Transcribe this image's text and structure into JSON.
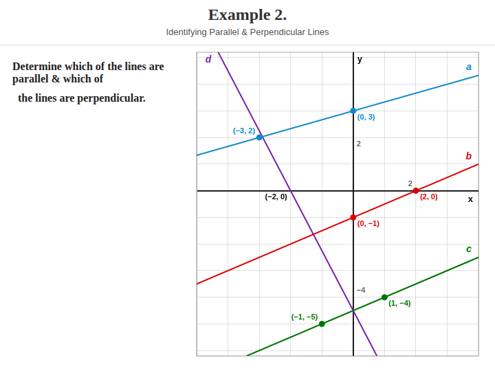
{
  "chart_data": {
    "type": "line",
    "title": "Example 2.",
    "subtitle": "Identifying Parallel & Perpendicular Lines",
    "text": [
      "Determine which of the lines are parallel & which of",
      "  the lines are perpendicular."
    ],
    "xlabel": "x",
    "ylabel": "y",
    "xlim": [
      -5,
      4
    ],
    "ylim": [
      -6.2,
      5.2
    ],
    "xticks": [
      -5,
      -4,
      -3,
      -2,
      -1,
      0,
      1,
      2,
      3,
      4
    ],
    "yticks": [
      -6,
      -5,
      -4,
      -3,
      -2,
      -1,
      0,
      1,
      2,
      3,
      4,
      5
    ],
    "grid": true,
    "tick_labels": false,
    "series": [
      {
        "name": "a",
        "color": "#1188cc",
        "x": [
          -5,
          4
        ],
        "values": [
          1.3333,
          4.3333
        ],
        "points": {
          "x": [
            0,
            -3
          ],
          "values": [
            3,
            2
          ],
          "value_labels": [
            "(0, 3)",
            "(−3, 2)"
          ]
        }
      },
      {
        "name": "b",
        "color": "#dd0000",
        "x": [
          -5,
          4
        ],
        "values": [
          -3.5,
          1
        ],
        "points": {
          "x": [
            0,
            2
          ],
          "values": [
            -1,
            0
          ],
          "value_labels": [
            "(0, −1)",
            "(2, 0)"
          ]
        }
      },
      {
        "name": "c",
        "color": "#007700",
        "x": [
          -3.4,
          4
        ],
        "values": [
          -6.2,
          -2.5
        ],
        "points": {
          "x": [
            1,
            -1
          ],
          "values": [
            -4,
            -5
          ],
          "value_labels": [
            "(1, −4)",
            "(−1, −5)"
          ]
        }
      },
      {
        "name": "d",
        "color": "#7722aa",
        "x": [
          -4.3111,
          0.7556
        ],
        "values": [
          5.2,
          -6.2
        ]
      }
    ],
    "annotations": [
      {
        "text": "(−2, 0)",
        "x": -2,
        "y": 0,
        "color": "#000000"
      },
      {
        "text": "2",
        "x": 0,
        "y": 2
      },
      {
        "text": "−4",
        "x": 0,
        "y": -4
      },
      {
        "text": "2",
        "x": 2,
        "y": 0
      }
    ]
  }
}
